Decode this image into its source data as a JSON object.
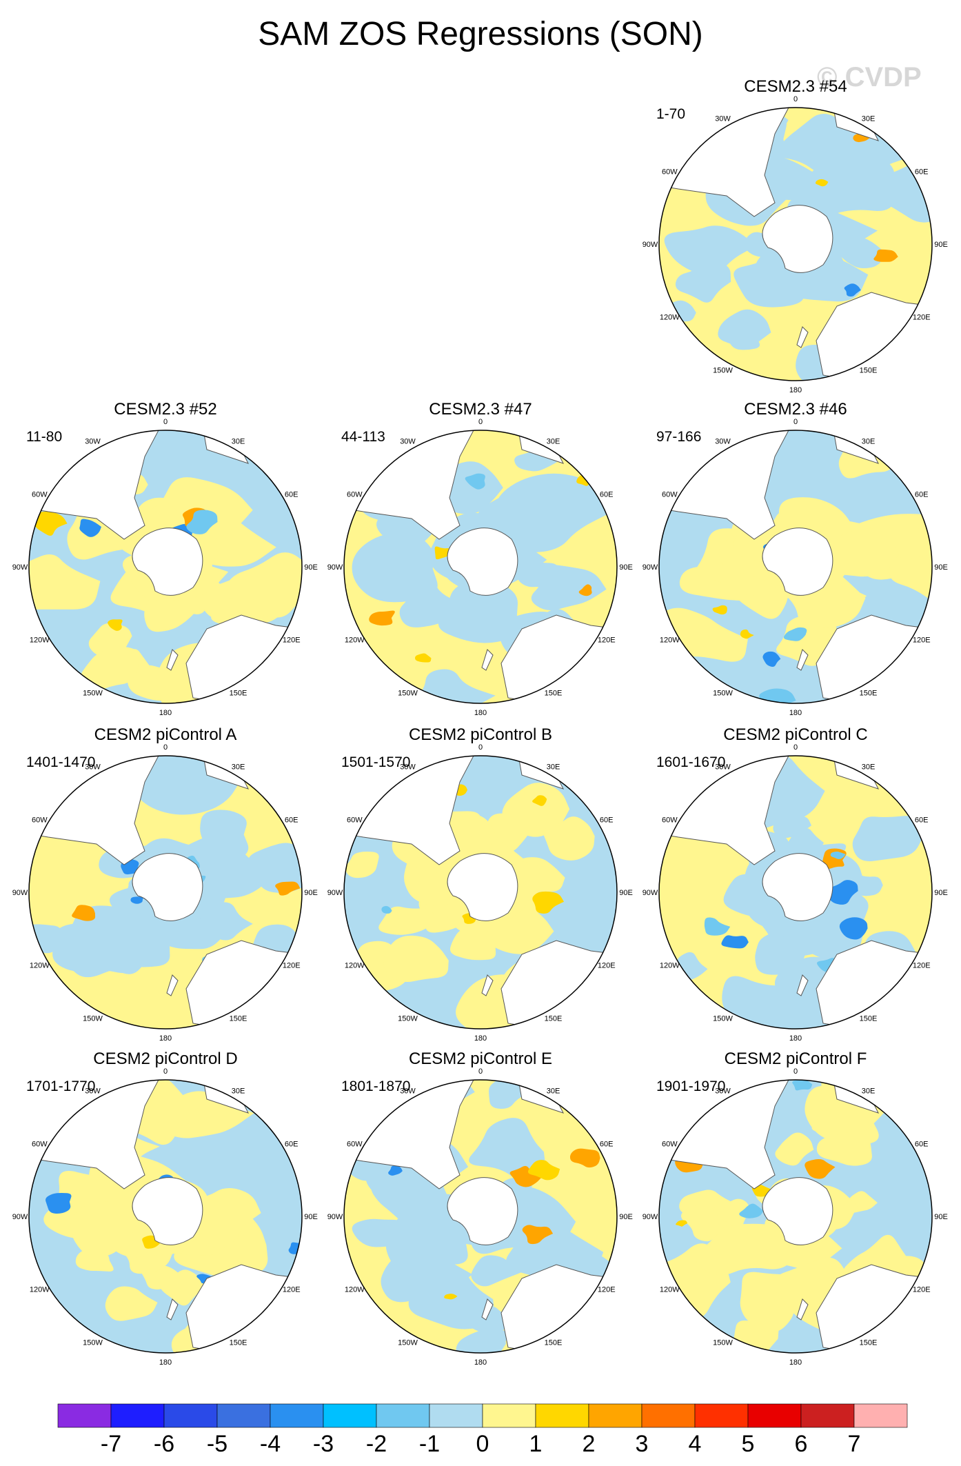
{
  "title": "SAM ZOS Regressions (SON)",
  "watermark": "© CVDP",
  "longitude_labels": [
    "0",
    "30E",
    "60E",
    "90E",
    "120E",
    "150E",
    "180",
    "150W",
    "120W",
    "90W",
    "60W",
    "30W"
  ],
  "panels": [
    {
      "model": "CESM2.3 #54",
      "years": "1-70",
      "variant": 0
    },
    {
      "model": "CESM2.3 #52",
      "years": "11-80",
      "variant": 1
    },
    {
      "model": "CESM2.3 #47",
      "years": "44-113",
      "variant": 2
    },
    {
      "model": "CESM2.3 #46",
      "years": "97-166",
      "variant": 3
    },
    {
      "model": "CESM2 piControl A",
      "years": "1401-1470",
      "variant": 4
    },
    {
      "model": "CESM2 piControl B",
      "years": "1501-1570",
      "variant": 5
    },
    {
      "model": "CESM2 piControl C",
      "years": "1601-1670",
      "variant": 6
    },
    {
      "model": "CESM2 piControl D",
      "years": "1701-1770",
      "variant": 7
    },
    {
      "model": "CESM2 piControl E",
      "years": "1801-1870",
      "variant": 8
    },
    {
      "model": "CESM2 piControl F",
      "years": "1901-1970",
      "variant": 9
    }
  ],
  "colorbar": {
    "colors": [
      "#8a2be2",
      "#1e1eff",
      "#2a4ae8",
      "#3a70e0",
      "#2a90f0",
      "#00c0ff",
      "#70c8f0",
      "#b0dcf0",
      "#fff68f",
      "#ffd700",
      "#ffa500",
      "#ff7000",
      "#ff3000",
      "#e80000",
      "#cc2020",
      "#ffb0b0"
    ],
    "labels": [
      "-7",
      "-6",
      "-5",
      "-4",
      "-3",
      "-2",
      "-1",
      "0",
      "1",
      "2",
      "3",
      "4",
      "5",
      "6",
      "7"
    ]
  }
}
